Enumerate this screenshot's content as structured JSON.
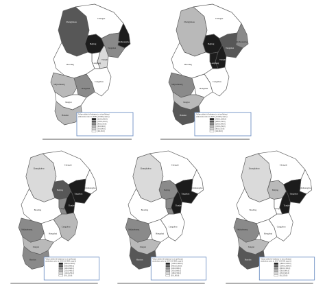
{
  "colors": {
    "black": "#1c1c1c",
    "dark": "#575757",
    "mid": "#8a8a8a",
    "light": "#b9b9b9",
    "lighter": "#dadada",
    "white": "#ffffff"
  },
  "region_names": {
    "zhangjiakou": "Zhangjiakou",
    "chengde": "Chengde",
    "beijing": "Beijing",
    "tianjin": "Tianjin",
    "tangshan": "Tangshan",
    "qinhuangdao": "Qinhuangdao",
    "langfang": "Langfang",
    "baoding": "Baoding",
    "cangzhou": "Cangzhou",
    "shijiazhuang": "Shijiazhuang",
    "hengshui": "Hengshui",
    "xingtai": "Xingtai",
    "handan": "Handan"
  },
  "maps": [
    {
      "fills": {
        "zhangjiakou": "dark",
        "chengde": "white",
        "beijing": "black",
        "tianjin": "lighter",
        "tangshan": "mid",
        "qinhuangdao": "black",
        "langfang": "white",
        "baoding": "white",
        "cangzhou": "white",
        "shijiazhuang": "light",
        "hengshui": "mid",
        "xingtai": "white",
        "handan": "light"
      },
      "legend": {
        "title": "Value-added of industry to air pollutant emissions ratio in 2000 (10 000 yuan/t)",
        "entries": [
          "[210.0,650.0]",
          "(150.0,210.0]",
          "(90.0,150.0]",
          "(60.0,90.0]",
          "(30.0,60.0]",
          "[0.0,30.0]"
        ]
      }
    },
    {
      "fills": {
        "zhangjiakou": "light",
        "chengde": "white",
        "beijing": "black",
        "tianjin": "black",
        "tangshan": "dark",
        "qinhuangdao": "mid",
        "langfang": "black",
        "baoding": "white",
        "cangzhou": "white",
        "shijiazhuang": "mid",
        "hengshui": "white",
        "xingtai": "light",
        "handan": "dark"
      },
      "legend": {
        "title": "Value-added of industry to air pollutant emissions ratio in 2005 (10 000 yuan/t)",
        "entries": [
          "[530.0,1200.0]",
          "(400.0,530.0]",
          "(250.0,400.0]",
          "(150.0,250.0]",
          "(80.0,150.0]",
          "[0.0,80.0]"
        ]
      }
    },
    {
      "fills": {
        "zhangjiakou": "lighter",
        "chengde": "white",
        "beijing": "dark",
        "tianjin": "black",
        "tangshan": "black",
        "qinhuangdao": "white",
        "langfang": "mid",
        "baoding": "white",
        "cangzhou": "light",
        "shijiazhuang": "mid",
        "hengshui": "white",
        "xingtai": "light",
        "handan": "mid"
      },
      "legend": {
        "title": "Value-added of industry to air pollutant emissions ratio in 2010 (10 000 yuan/t)",
        "entries": [
          "[800.0,2100.0]",
          "(600.0,800.0]",
          "(400.0,600.0]",
          "(250.0,400.0]",
          "(120.0,250.0]",
          "[0.0,120.0]"
        ]
      }
    },
    {
      "fills": {
        "zhangjiakou": "lighter",
        "chengde": "white",
        "beijing": "mid",
        "tianjin": "black",
        "tangshan": "black",
        "qinhuangdao": "white",
        "langfang": "mid",
        "baoding": "white",
        "cangzhou": "white",
        "shijiazhuang": "mid",
        "hengshui": "white",
        "xingtai": "light",
        "handan": "dark"
      },
      "legend": {
        "title": "Value-added of industry to air pollutant emissions ratio in 2015 (10 000 yuan/t)",
        "entries": [
          "[1200.0,3600.0]",
          "(900.0,1200.0]",
          "(600.0,900.0]",
          "(350.0,600.0]",
          "(180.0,350.0]",
          "[0.0,180.0]"
        ]
      }
    },
    {
      "fills": {
        "zhangjiakou": "lighter",
        "chengde": "white",
        "beijing": "light",
        "tianjin": "black",
        "tangshan": "black",
        "qinhuangdao": "white",
        "langfang": "white",
        "baoding": "white",
        "cangzhou": "white",
        "shijiazhuang": "mid",
        "hengshui": "white",
        "xingtai": "light",
        "handan": "dark"
      },
      "legend": {
        "title": "Value-added of industry to air pollutant emissions ratio in 2017 (10 000 yuan/t)",
        "entries": [
          "[1800.0,5200.0]",
          "(1300.0,1800.0]",
          "(900.0,1300.0]",
          "(500.0,900.0]",
          "(250.0,500.0]",
          "[0.0,250.0]"
        ]
      }
    }
  ]
}
